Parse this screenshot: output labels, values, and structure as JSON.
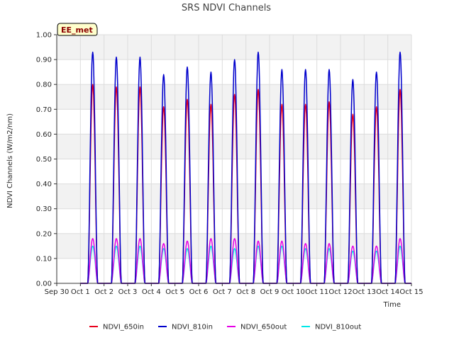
{
  "chart_data": {
    "type": "line",
    "title": "SRS NDVI Channels",
    "badge": "EE_met",
    "xlabel": "Time",
    "ylabel": "NDVI Channels (W/m2/nm)",
    "xlim": [
      "2023-09-30",
      "2023-10-15"
    ],
    "ylim": [
      0,
      1.0
    ],
    "x_ticks": [
      {
        "date": "2023-09-30",
        "label": "Sep 30"
      },
      {
        "date": "2023-10-01",
        "label": "Oct 1"
      },
      {
        "date": "2023-10-02",
        "label": "Oct 2"
      },
      {
        "date": "2023-10-03",
        "label": "Oct 3"
      },
      {
        "date": "2023-10-04",
        "label": "Oct 4"
      },
      {
        "date": "2023-10-05",
        "label": "Oct 5"
      },
      {
        "date": "2023-10-06",
        "label": "Oct 6"
      },
      {
        "date": "2023-10-07",
        "label": "Oct 7"
      },
      {
        "date": "2023-10-08",
        "label": "Oct 8"
      },
      {
        "date": "2023-10-09",
        "label": "Oct 9"
      },
      {
        "date": "2023-10-10",
        "label": "Oct 10"
      },
      {
        "date": "2023-10-11",
        "label": "Oct 11"
      },
      {
        "date": "2023-10-12",
        "label": "Oct 12"
      },
      {
        "date": "2023-10-13",
        "label": "Oct 13"
      },
      {
        "date": "2023-10-14",
        "label": "Oct 14"
      },
      {
        "date": "2023-10-15",
        "label": "Oct 15"
      }
    ],
    "y_ticks": [
      {
        "value": 0.0,
        "label": "0.00"
      },
      {
        "value": 0.1,
        "label": "0.10"
      },
      {
        "value": 0.2,
        "label": "0.20"
      },
      {
        "value": 0.3,
        "label": "0.30"
      },
      {
        "value": 0.4,
        "label": "0.40"
      },
      {
        "value": 0.5,
        "label": "0.50"
      },
      {
        "value": 0.6,
        "label": "0.60"
      },
      {
        "value": 0.7,
        "label": "0.70"
      },
      {
        "value": 0.8,
        "label": "0.80"
      },
      {
        "value": 0.9,
        "label": "0.90"
      },
      {
        "value": 1.0,
        "label": "1.00"
      }
    ],
    "grid": true,
    "legend_position": "bottom",
    "series": [
      {
        "name": "NDVI_650in",
        "color": "#e8001c"
      },
      {
        "name": "NDVI_810in",
        "color": "#0000cc"
      },
      {
        "name": "NDVI_650out",
        "color": "#e600e6"
      },
      {
        "name": "NDVI_810out",
        "color": "#00e8e8"
      }
    ],
    "daily_peaks": [
      {
        "date": "2023-10-01",
        "NDVI_650in": 0.8,
        "NDVI_810in": 0.93,
        "NDVI_650out": 0.18,
        "NDVI_810out": 0.15
      },
      {
        "date": "2023-10-02",
        "NDVI_650in": 0.79,
        "NDVI_810in": 0.91,
        "NDVI_650out": 0.18,
        "NDVI_810out": 0.15
      },
      {
        "date": "2023-10-03",
        "NDVI_650in": 0.79,
        "NDVI_810in": 0.91,
        "NDVI_650out": 0.18,
        "NDVI_810out": 0.15
      },
      {
        "date": "2023-10-04",
        "NDVI_650in": 0.71,
        "NDVI_810in": 0.84,
        "NDVI_650out": 0.16,
        "NDVI_810out": 0.14
      },
      {
        "date": "2023-10-05",
        "NDVI_650in": 0.74,
        "NDVI_810in": 0.87,
        "NDVI_650out": 0.17,
        "NDVI_810out": 0.14
      },
      {
        "date": "2023-10-06",
        "NDVI_650in": 0.72,
        "NDVI_810in": 0.85,
        "NDVI_650out": 0.18,
        "NDVI_810out": 0.15
      },
      {
        "date": "2023-10-07",
        "NDVI_650in": 0.76,
        "NDVI_810in": 0.9,
        "NDVI_650out": 0.18,
        "NDVI_810out": 0.14
      },
      {
        "date": "2023-10-08",
        "NDVI_650in": 0.78,
        "NDVI_810in": 0.93,
        "NDVI_650out": 0.17,
        "NDVI_810out": 0.15
      },
      {
        "date": "2023-10-09",
        "NDVI_650in": 0.72,
        "NDVI_810in": 0.86,
        "NDVI_650out": 0.17,
        "NDVI_810out": 0.15
      },
      {
        "date": "2023-10-10",
        "NDVI_650in": 0.72,
        "NDVI_810in": 0.86,
        "NDVI_650out": 0.16,
        "NDVI_810out": 0.14
      },
      {
        "date": "2023-10-11",
        "NDVI_650in": 0.73,
        "NDVI_810in": 0.86,
        "NDVI_650out": 0.16,
        "NDVI_810out": 0.14
      },
      {
        "date": "2023-10-12",
        "NDVI_650in": 0.68,
        "NDVI_810in": 0.82,
        "NDVI_650out": 0.15,
        "NDVI_810out": 0.13
      },
      {
        "date": "2023-10-13",
        "NDVI_650in": 0.71,
        "NDVI_810in": 0.85,
        "NDVI_650out": 0.15,
        "NDVI_810out": 0.13
      },
      {
        "date": "2023-10-14",
        "NDVI_650in": 0.78,
        "NDVI_810in": 0.93,
        "NDVI_650out": 0.18,
        "NDVI_810out": 0.15
      }
    ],
    "daylight_hours": [
      7.5,
      17.5
    ],
    "data_range": [
      "2023-10-01",
      "2023-10-14"
    ]
  }
}
